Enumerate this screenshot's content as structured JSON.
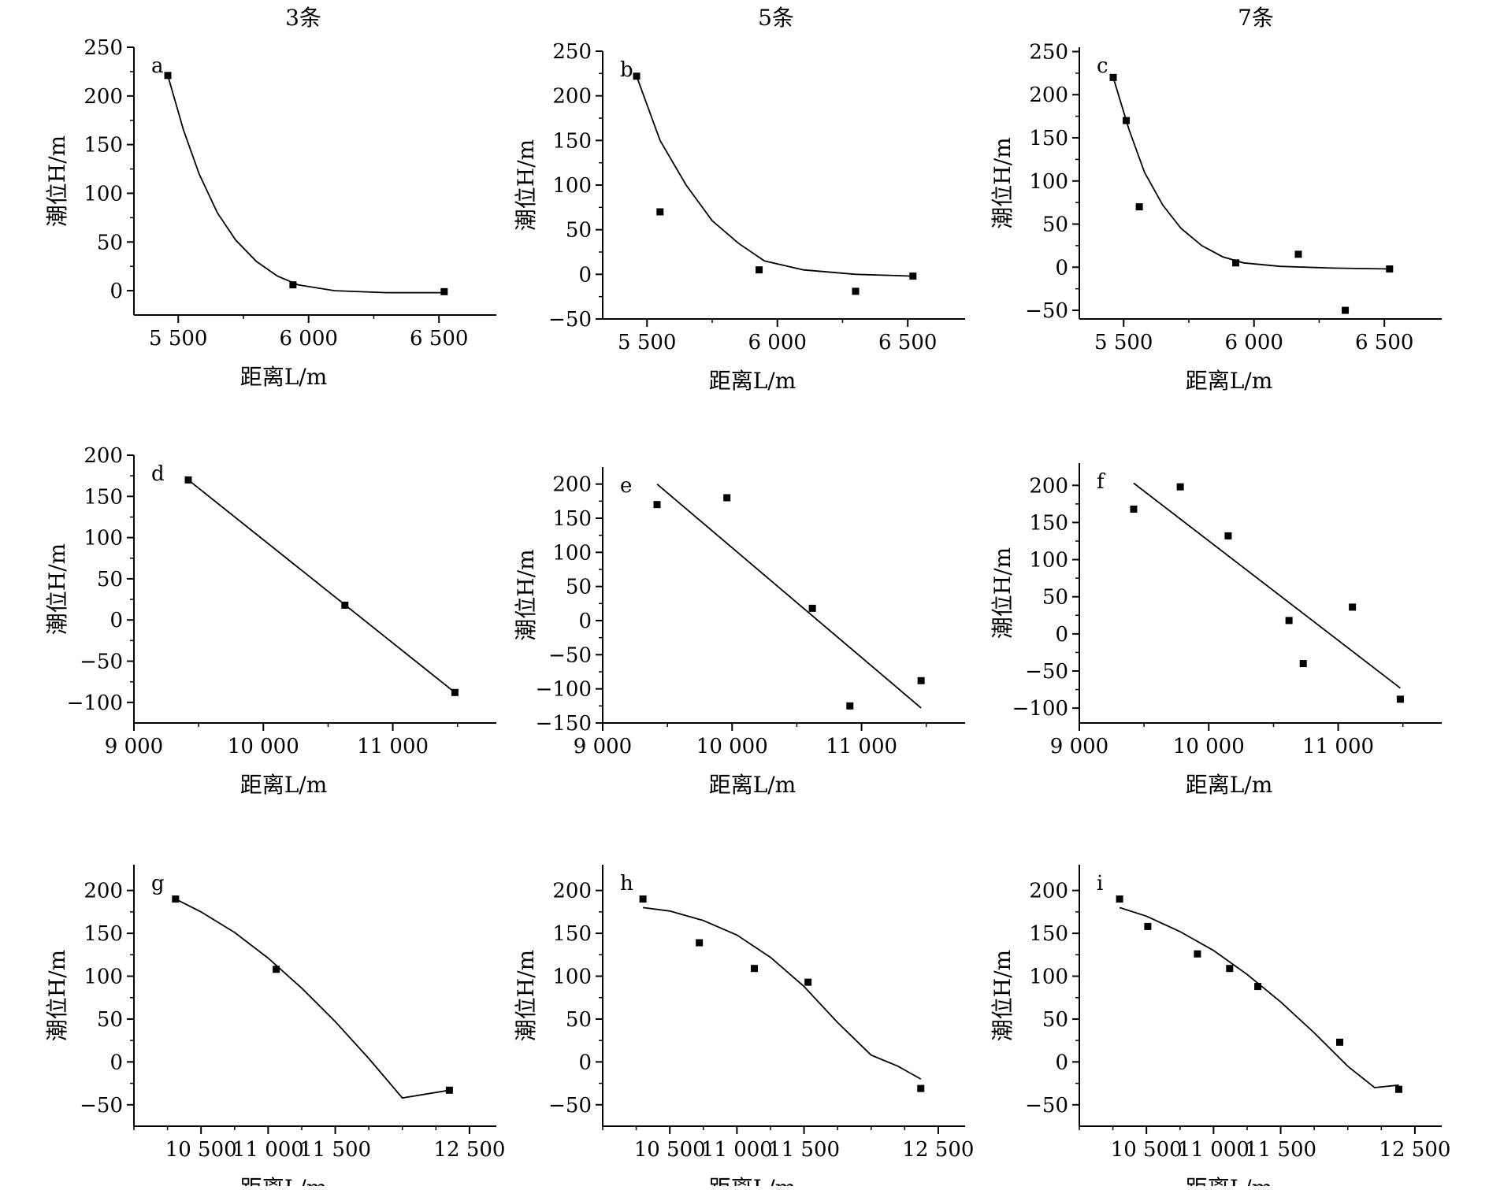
{
  "column_titles": [
    "3条",
    "5条",
    "7条"
  ],
  "colors": {
    "ink": "#000000",
    "background": "#ffffff"
  },
  "chart_data": [
    {
      "panel": "a",
      "type": "scatter",
      "fit": "exponential",
      "xlabel": "距离L/m",
      "ylabel": "潮位H/m",
      "xlim": [
        5330,
        6720
      ],
      "ylim": [
        -25,
        250
      ],
      "xticks": [
        5500,
        6000,
        6500
      ],
      "xtick_labels": [
        "5 500",
        "6 000",
        "6 500"
      ],
      "yticks": [
        0,
        50,
        100,
        150,
        200,
        250
      ],
      "ytick_labels": [
        "0",
        "50",
        "100",
        "150",
        "200",
        "250"
      ],
      "points": [
        [
          5460,
          221
        ],
        [
          5940,
          6
        ],
        [
          6520,
          -1
        ]
      ],
      "fit_curve": [
        [
          5460,
          221
        ],
        [
          5520,
          165
        ],
        [
          5580,
          120
        ],
        [
          5650,
          80
        ],
        [
          5720,
          52
        ],
        [
          5800,
          30
        ],
        [
          5880,
          15
        ],
        [
          5960,
          6
        ],
        [
          6100,
          0
        ],
        [
          6300,
          -2
        ],
        [
          6520,
          -2
        ]
      ]
    },
    {
      "panel": "b",
      "type": "scatter",
      "fit": "exponential",
      "xlabel": "距离L/m",
      "ylabel": "潮位H/m",
      "xlim": [
        5330,
        6720
      ],
      "ylim": [
        -50,
        250
      ],
      "xticks": [
        5500,
        6000,
        6500
      ],
      "xtick_labels": [
        "5 500",
        "6 000",
        "6 500"
      ],
      "yticks": [
        -50,
        0,
        50,
        100,
        150,
        200,
        250
      ],
      "ytick_labels": [
        "−50",
        "0",
        "50",
        "100",
        "150",
        "200",
        "250"
      ],
      "points": [
        [
          5460,
          222
        ],
        [
          5550,
          70
        ],
        [
          5930,
          5
        ],
        [
          6300,
          -19
        ],
        [
          6520,
          -2
        ]
      ],
      "fit_curve": [
        [
          5460,
          222
        ],
        [
          5550,
          150
        ],
        [
          5650,
          100
        ],
        [
          5750,
          60
        ],
        [
          5850,
          35
        ],
        [
          5950,
          15
        ],
        [
          6100,
          5
        ],
        [
          6300,
          0
        ],
        [
          6520,
          -2
        ]
      ]
    },
    {
      "panel": "c",
      "type": "scatter",
      "fit": "exponential",
      "xlabel": "距离L/m",
      "ylabel": "潮位H/m",
      "xlim": [
        5330,
        6720
      ],
      "ylim": [
        -60,
        255
      ],
      "xticks": [
        5500,
        6000,
        6500
      ],
      "xtick_labels": [
        "5 500",
        "6 000",
        "6 500"
      ],
      "yticks": [
        -50,
        0,
        50,
        100,
        150,
        200,
        250
      ],
      "ytick_labels": [
        "−50",
        "0",
        "50",
        "100",
        "150",
        "200",
        "250"
      ],
      "points": [
        [
          5460,
          220
        ],
        [
          5510,
          170
        ],
        [
          5560,
          70
        ],
        [
          5930,
          5
        ],
        [
          6170,
          15
        ],
        [
          6350,
          -50
        ],
        [
          6520,
          -2
        ]
      ],
      "fit_curve": [
        [
          5460,
          220
        ],
        [
          5520,
          160
        ],
        [
          5580,
          110
        ],
        [
          5650,
          72
        ],
        [
          5720,
          45
        ],
        [
          5800,
          25
        ],
        [
          5880,
          12
        ],
        [
          5960,
          5
        ],
        [
          6100,
          1
        ],
        [
          6300,
          -1
        ],
        [
          6520,
          -2
        ]
      ]
    },
    {
      "panel": "d",
      "type": "scatter",
      "fit": "linear",
      "xlabel": "距离L/m",
      "ylabel": "潮位H/m",
      "xlim": [
        9000,
        11800
      ],
      "ylim": [
        -125,
        200
      ],
      "xticks": [
        9000,
        10000,
        11000
      ],
      "xtick_labels": [
        "9 000",
        "10 000",
        "11 000"
      ],
      "yticks": [
        -100,
        -50,
        0,
        50,
        100,
        150,
        200
      ],
      "ytick_labels": [
        "−100",
        "−50",
        "0",
        "50",
        "100",
        "150",
        "200"
      ],
      "points": [
        [
          9420,
          170
        ],
        [
          10630,
          18
        ],
        [
          11480,
          -88
        ]
      ],
      "fit_curve": [
        [
          9420,
          170
        ],
        [
          11480,
          -88
        ]
      ]
    },
    {
      "panel": "e",
      "type": "scatter",
      "fit": "linear",
      "xlabel": "距离L/m",
      "ylabel": "潮位H/m",
      "xlim": [
        9000,
        11800
      ],
      "ylim": [
        -150,
        225
      ],
      "xticks": [
        9000,
        10000,
        11000
      ],
      "xtick_labels": [
        "9 000",
        "10 000",
        "11 000"
      ],
      "yticks": [
        -150,
        -100,
        -50,
        0,
        50,
        100,
        150,
        200
      ],
      "ytick_labels": [
        "−150",
        "−100",
        "−50",
        "0",
        "50",
        "100",
        "150",
        "200"
      ],
      "points": [
        [
          9420,
          170
        ],
        [
          9960,
          180
        ],
        [
          10620,
          18
        ],
        [
          10910,
          -125
        ],
        [
          11460,
          -88
        ]
      ],
      "fit_curve": [
        [
          9420,
          200
        ],
        [
          11460,
          -128
        ]
      ]
    },
    {
      "panel": "f",
      "type": "scatter",
      "fit": "linear",
      "xlabel": "距离L/m",
      "ylabel": "潮位H/m",
      "xlim": [
        9000,
        11800
      ],
      "ylim": [
        -120,
        230
      ],
      "xticks": [
        9000,
        10000,
        11000
      ],
      "xtick_labels": [
        "9 000",
        "10 000",
        "11 000"
      ],
      "yticks": [
        -100,
        -50,
        0,
        50,
        100,
        150,
        200
      ],
      "ytick_labels": [
        "−100",
        "−50",
        "0",
        "50",
        "100",
        "150",
        "200"
      ],
      "points": [
        [
          9420,
          168
        ],
        [
          9780,
          198
        ],
        [
          10150,
          132
        ],
        [
          10620,
          18
        ],
        [
          10730,
          -40
        ],
        [
          11110,
          36
        ],
        [
          11480,
          -88
        ]
      ],
      "fit_curve": [
        [
          9420,
          203
        ],
        [
          11480,
          -73
        ]
      ]
    },
    {
      "panel": "g",
      "type": "scatter",
      "fit": "quadratic",
      "xlabel": "距离L/m",
      "ylabel": "潮位H/m",
      "xlim": [
        10000,
        12700
      ],
      "ylim": [
        -75,
        230
      ],
      "xticks": [
        10500,
        11000,
        11500,
        12500
      ],
      "xtick_labels": [
        "10 500",
        "11 000",
        "11 500",
        "12 500"
      ],
      "yticks": [
        -50,
        0,
        50,
        100,
        150,
        200
      ],
      "ytick_labels": [
        "−50",
        "0",
        "50",
        "100",
        "150",
        "200"
      ],
      "points": [
        [
          10310,
          190
        ],
        [
          11060,
          108
        ],
        [
          12350,
          -33
        ]
      ],
      "fit_curve": [
        [
          10310,
          190
        ],
        [
          10500,
          175
        ],
        [
          10750,
          151
        ],
        [
          11000,
          121
        ],
        [
          11250,
          86
        ],
        [
          11500,
          47
        ],
        [
          11750,
          4
        ],
        [
          12000,
          -42
        ],
        [
          12350,
          -33
        ]
      ]
    },
    {
      "panel": "h",
      "type": "scatter",
      "fit": "quadratic",
      "xlabel": "距离L/m",
      "ylabel": "潮位H/m",
      "xlim": [
        10000,
        12700
      ],
      "ylim": [
        -75,
        230
      ],
      "xticks": [
        10500,
        11000,
        11500,
        12500
      ],
      "xtick_labels": [
        "10 500",
        "11 000",
        "11 500",
        "12 500"
      ],
      "yticks": [
        -50,
        0,
        50,
        100,
        150,
        200
      ],
      "ytick_labels": [
        "−50",
        "0",
        "50",
        "100",
        "150",
        "200"
      ],
      "points": [
        [
          10300,
          190
        ],
        [
          10720,
          139
        ],
        [
          11130,
          109
        ],
        [
          11530,
          93
        ],
        [
          12370,
          -31
        ]
      ],
      "fit_curve": [
        [
          10300,
          180
        ],
        [
          10500,
          176
        ],
        [
          10750,
          165
        ],
        [
          11000,
          148
        ],
        [
          11250,
          122
        ],
        [
          11500,
          88
        ],
        [
          11750,
          46
        ],
        [
          12000,
          8
        ],
        [
          12200,
          -5
        ],
        [
          12370,
          -20
        ]
      ]
    },
    {
      "panel": "i",
      "type": "scatter",
      "fit": "quadratic",
      "xlabel": "距离L/m",
      "ylabel": "潮位H/m",
      "xlim": [
        10000,
        12700
      ],
      "ylim": [
        -75,
        230
      ],
      "xticks": [
        10500,
        11000,
        11500,
        12500
      ],
      "xtick_labels": [
        "10 500",
        "11 000",
        "11 500",
        "12 500"
      ],
      "yticks": [
        -50,
        0,
        50,
        100,
        150,
        200
      ],
      "ytick_labels": [
        "−50",
        "0",
        "50",
        "100",
        "150",
        "200"
      ],
      "points": [
        [
          10300,
          190
        ],
        [
          10510,
          158
        ],
        [
          10880,
          126
        ],
        [
          11120,
          109
        ],
        [
          11330,
          88
        ],
        [
          11940,
          23
        ],
        [
          12380,
          -32
        ]
      ],
      "fit_curve": [
        [
          10300,
          180
        ],
        [
          10500,
          170
        ],
        [
          10750,
          152
        ],
        [
          11000,
          130
        ],
        [
          11250,
          102
        ],
        [
          11500,
          70
        ],
        [
          11750,
          34
        ],
        [
          12000,
          -5
        ],
        [
          12200,
          -30
        ],
        [
          12380,
          -27
        ]
      ]
    }
  ]
}
